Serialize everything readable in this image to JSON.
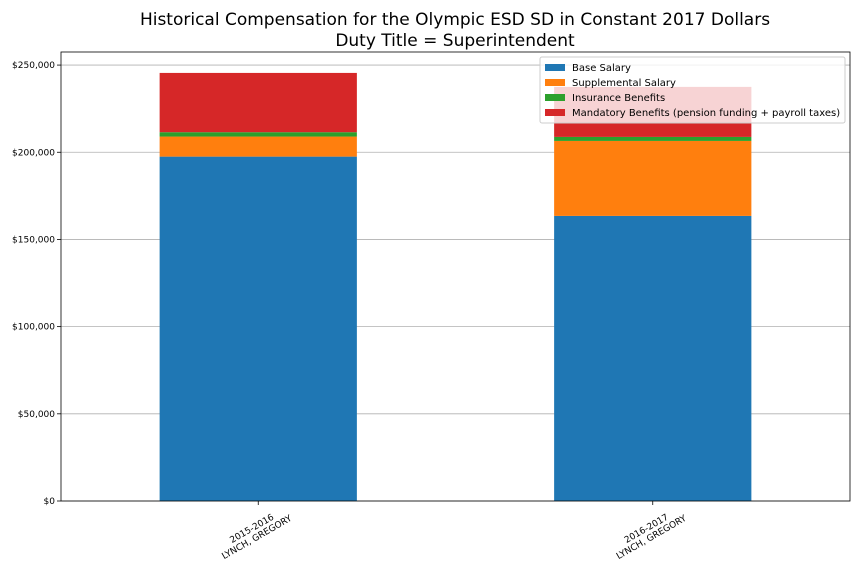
{
  "chart_data": {
    "type": "bar",
    "stacked": true,
    "title": "Historical Compensation for the Olympic ESD SD in Constant 2017 Dollars",
    "subtitle": "Duty Title = Superintendent",
    "xlabel": "",
    "ylabel": "",
    "ylim": [
      0,
      257500
    ],
    "yticks": [
      0,
      50000,
      100000,
      150000,
      200000,
      250000
    ],
    "ytick_labels": [
      "$0",
      "$50,000",
      "$100,000",
      "$150,000",
      "$200,000",
      "$250,000"
    ],
    "grid": "y",
    "legend_position": "top-right",
    "categories": [
      [
        "2015-2016",
        "LYNCH, GREGORY"
      ],
      [
        "2016-2017",
        "LYNCH, GREGORY"
      ]
    ],
    "series": [
      {
        "name": "Base Salary",
        "color": "#1f77b4",
        "values": [
          197500,
          163500
        ]
      },
      {
        "name": "Supplemental Salary",
        "color": "#ff7f0e",
        "values": [
          11500,
          43000
        ]
      },
      {
        "name": "Insurance Benefits",
        "color": "#2ca02c",
        "values": [
          2500,
          2300
        ]
      },
      {
        "name": "Mandatory Benefits (pension funding + payroll taxes)",
        "color": "#d62728",
        "values": [
          34000,
          28700
        ]
      }
    ]
  }
}
